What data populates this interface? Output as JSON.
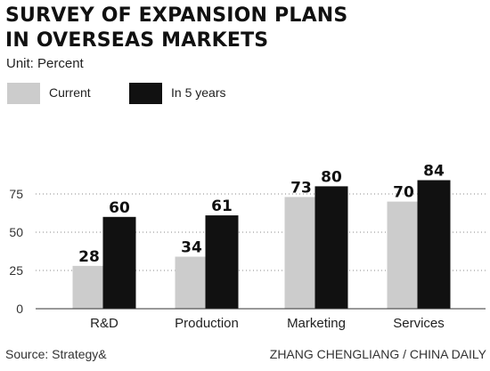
{
  "header": {
    "title_line1": "SURVEY OF EXPANSION PLANS",
    "title_line2": "IN OVERSEAS MARKETS",
    "unit": "Unit: Percent"
  },
  "footer": {
    "source": "Source: Strategy&",
    "credit": "ZHANG CHENGLIANG / CHINA DAILY"
  },
  "chart_data": {
    "type": "bar",
    "title": "SURVEY OF EXPANSION PLANS IN OVERSEAS MARKETS",
    "ylabel": "",
    "xlabel": "",
    "unit": "Unit: Percent",
    "categories": [
      "R&D",
      "Production",
      "Marketing",
      "Services"
    ],
    "series": [
      {
        "name": "Current",
        "values": [
          28,
          34,
          73,
          70
        ],
        "color": "#cccccc"
      },
      {
        "name": "In 5 years",
        "values": [
          60,
          61,
          80,
          84
        ],
        "color": "#111111"
      }
    ],
    "ylim": [
      0,
      90
    ],
    "yticks": [
      0,
      25,
      50,
      75
    ],
    "grid": "dotted horizontal",
    "legend": "top-left",
    "data_labels": true
  }
}
